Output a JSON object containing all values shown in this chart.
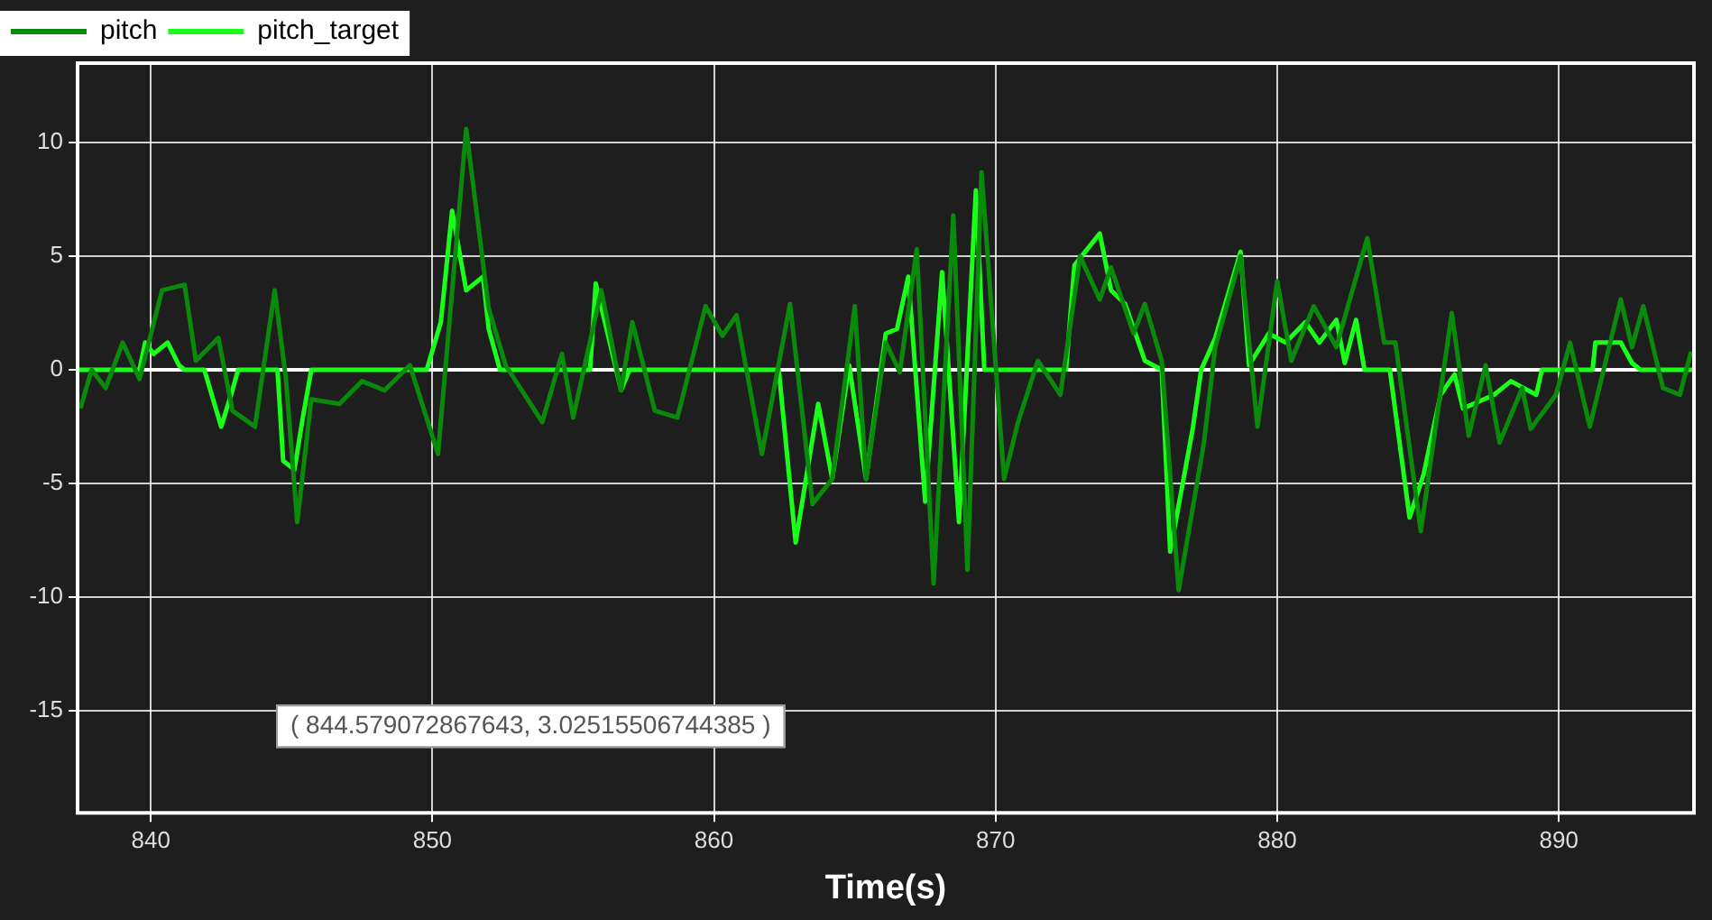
{
  "chart_data": {
    "type": "line",
    "xlabel": "Time(s)",
    "xlim": [
      837.4,
      894.8
    ],
    "xticks": [
      840,
      850,
      860,
      870,
      880,
      890
    ],
    "ylim": [
      -19.5,
      13.5
    ],
    "yticks": [
      -15,
      -10,
      -5,
      0,
      5,
      10
    ],
    "grid": true,
    "legend": "top left",
    "marker": "none",
    "line_style": "solid",
    "ref_lines": [
      {
        "axis": "y",
        "value": 0,
        "color": "#ffffff"
      }
    ],
    "annotations": [
      "( 844.579072867643, 3.02515506744385 )"
    ],
    "series": [
      {
        "name": "pitch",
        "color": "#0a8a0a",
        "x": [
          837.5,
          837.9,
          838.4,
          839.0,
          839.6,
          840.4,
          841.2,
          841.6,
          842.4,
          842.9,
          843.7,
          844.4,
          844.8,
          845.2,
          845.7,
          846.7,
          847.5,
          848.3,
          849.2,
          850.2,
          851.2,
          852.0,
          852.6,
          853.9,
          854.6,
          855.0,
          856.0,
          856.7,
          857.1,
          857.9,
          858.7,
          859.7,
          860.3,
          860.8,
          861.7,
          862.7,
          863.5,
          864.2,
          865.0,
          865.4,
          866.1,
          866.6,
          867.2,
          867.8,
          868.5,
          869.0,
          869.5,
          870.3,
          870.8,
          871.5,
          872.3,
          873.0,
          873.7,
          874.1,
          874.9,
          875.3,
          875.9,
          876.5,
          877.4,
          877.8,
          878.7,
          879.3,
          880.0,
          880.5,
          881.3,
          882.1,
          883.2,
          883.8,
          884.2,
          885.1,
          886.2,
          886.8,
          887.4,
          887.9,
          888.7,
          889.0,
          889.9,
          890.4,
          891.1,
          892.2,
          892.6,
          893.0,
          893.7,
          894.3,
          894.7
        ],
        "values": [
          -1.7,
          0,
          -0.8,
          1.2,
          -0.4,
          3.5,
          3.75,
          0.4,
          1.4,
          -1.8,
          -2.5,
          3.5,
          -0.4,
          -6.7,
          -1.3,
          -1.5,
          -0.5,
          -0.9,
          0.2,
          -3.7,
          10.6,
          2.7,
          0.2,
          -2.3,
          0.7,
          -2.1,
          3.5,
          -0.9,
          2.1,
          -1.8,
          -2.1,
          2.8,
          1.5,
          2.4,
          -3.7,
          2.9,
          -5.9,
          -4.8,
          2.8,
          -4.8,
          1.2,
          -0.1,
          5.3,
          -9.4,
          6.8,
          -8.8,
          8.7,
          -4.8,
          -2.3,
          0.4,
          -1.1,
          5.0,
          3.1,
          4.5,
          1.6,
          2.9,
          0.4,
          -9.7,
          -3.2,
          1.0,
          5.0,
          -2.5,
          3.9,
          0.4,
          2.8,
          1.0,
          5.8,
          1.2,
          1.2,
          -7.1,
          2.5,
          -2.9,
          0.2,
          -3.2,
          -0.8,
          -2.6,
          -1.1,
          1.2,
          -2.5,
          3.1,
          1.0,
          2.8,
          -0.8,
          -1.1,
          0.8
        ]
      },
      {
        "name": "pitch_target",
        "color": "#1aff1a",
        "x": [
          837.4,
          839.6,
          839.8,
          840.1,
          840.6,
          841.0,
          841.2,
          841.9,
          842.5,
          842.9,
          843.1,
          844.5,
          844.7,
          845.1,
          845.4,
          845.7,
          849.8,
          850.3,
          850.7,
          851.2,
          851.8,
          852.0,
          852.4,
          855.6,
          855.8,
          856.3,
          856.7,
          857.0,
          862.3,
          862.9,
          863.7,
          864.2,
          864.8,
          865.4,
          866.1,
          866.5,
          866.9,
          867.5,
          868.1,
          868.7,
          869.3,
          869.6,
          872.5,
          872.8,
          873.7,
          874.1,
          874.6,
          875.3,
          875.9,
          876.2,
          877.0,
          877.3,
          877.8,
          878.7,
          879.0,
          879.7,
          880.3,
          881.0,
          881.5,
          882.1,
          882.4,
          882.8,
          883.1,
          884.0,
          884.7,
          885.2,
          885.8,
          886.3,
          886.6,
          887.7,
          888.3,
          889.2,
          889.4,
          891.2,
          891.3,
          892.2,
          892.6,
          892.9,
          894.8
        ],
        "values": [
          0,
          0,
          1.2,
          0.7,
          1.2,
          0.2,
          0,
          0,
          -2.5,
          -0.9,
          0,
          0,
          -4,
          -4.4,
          -2.1,
          0,
          0,
          2.1,
          7.0,
          3.5,
          4.1,
          1.8,
          0,
          0,
          3.8,
          1.2,
          -0.9,
          0,
          0,
          -7.6,
          -1.5,
          -4.8,
          0.2,
          -4.8,
          1.6,
          1.8,
          4.1,
          -5.8,
          4.3,
          -6.7,
          7.9,
          0,
          0,
          4.6,
          6.0,
          3.5,
          2.9,
          0.4,
          0,
          -8.0,
          -2.6,
          0,
          1.4,
          5.2,
          0.2,
          1.6,
          1.2,
          2.1,
          1.2,
          2.2,
          0.3,
          2.2,
          0,
          0,
          -6.5,
          -4.6,
          -1.1,
          -0.2,
          -1.7,
          -1.1,
          -0.5,
          -1.1,
          0,
          0,
          1.2,
          1.2,
          0.3,
          0,
          0
        ]
      }
    ]
  }
}
